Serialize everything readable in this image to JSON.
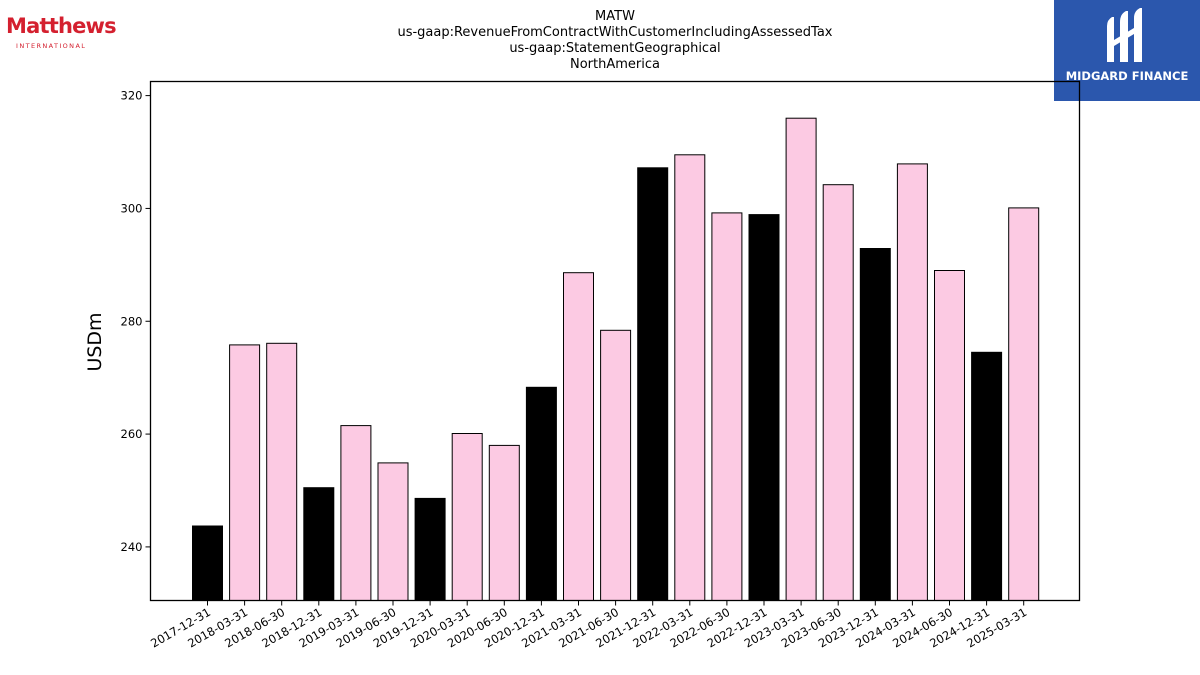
{
  "branding": {
    "left_logo_word": "Matthews",
    "left_logo_sub": "INTERNATIONAL",
    "right_logo_name": "MIDGARD FINANCE",
    "right_logo_bg": "#2b57ad",
    "left_logo_color": "#d4202f"
  },
  "chart_data": {
    "type": "bar",
    "title_lines": [
      "MATW",
      "us-gaap:RevenueFromContractWithCustomerIncludingAssessedTax",
      "us-gaap:StatementGeographical",
      "NorthAmerica"
    ],
    "xlabel": "",
    "ylabel": "USDm",
    "ylim": [
      230.5,
      322.5
    ],
    "yticks": [
      240,
      260,
      280,
      300,
      320
    ],
    "grid": false,
    "colors": {
      "fiscal_year_end": "#000000",
      "quarter": "#fccae3",
      "edge": "#000000"
    },
    "categories": [
      "2017-12-31",
      "2018-03-31",
      "2018-06-30",
      "2018-12-31",
      "2019-03-31",
      "2019-06-30",
      "2019-12-31",
      "2020-03-31",
      "2020-06-30",
      "2020-12-31",
      "2021-03-31",
      "2021-06-30",
      "2021-12-31",
      "2022-03-31",
      "2022-06-30",
      "2022-12-31",
      "2023-03-31",
      "2023-06-30",
      "2023-12-31",
      "2024-03-31",
      "2024-06-30",
      "2024-12-31",
      "2025-03-31"
    ],
    "values": [
      243.7,
      275.8,
      276.1,
      250.5,
      261.5,
      254.9,
      248.6,
      260.1,
      258.0,
      268.3,
      288.6,
      278.4,
      307.2,
      309.5,
      299.2,
      298.9,
      316.0,
      304.2,
      292.9,
      307.9,
      289.0,
      274.5,
      300.1
    ],
    "bar_kind": [
      "black",
      "pink",
      "pink",
      "black",
      "pink",
      "pink",
      "black",
      "pink",
      "pink",
      "black",
      "pink",
      "pink",
      "black",
      "pink",
      "pink",
      "black",
      "pink",
      "pink",
      "black",
      "pink",
      "pink",
      "black",
      "pink"
    ]
  }
}
